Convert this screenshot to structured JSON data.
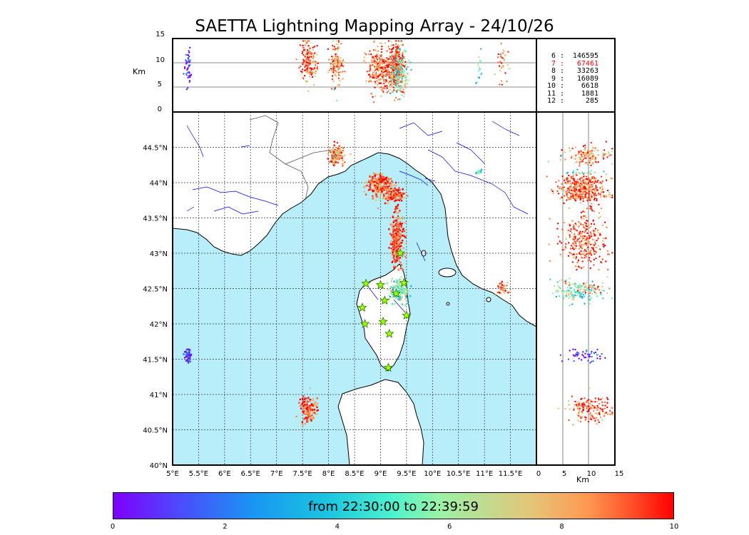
{
  "title": "SAETTA Lightning Mapping Array - 24/10/26",
  "altitude_panel": {
    "ylabel": "Km",
    "yticks": [
      "15",
      "10",
      "5",
      "0"
    ]
  },
  "side_panel": {
    "xlabel": "Km",
    "xticks": [
      "0",
      "5",
      "10",
      "15"
    ]
  },
  "map": {
    "lon_ticks": [
      "5°E",
      "5.5°E",
      "6°E",
      "6.5°E",
      "7°E",
      "7.5°E",
      "8°E",
      "8.5°E",
      "9°E",
      "9.5°E",
      "10°E",
      "10.5°E",
      "11°E",
      "11.5°E"
    ],
    "lat_ticks": [
      "44.5°N",
      "44°N",
      "43.5°N",
      "43°N",
      "42.5°N",
      "42°N",
      "41.5°N",
      "41°N",
      "40.5°N",
      "40°N"
    ],
    "lon_range": [
      5,
      12
    ],
    "lat_range": [
      40,
      45
    ],
    "sea_color": "#b8eefa",
    "land_color": "#ffffff",
    "river_color": "#0000ff",
    "station_icon": "star-icon",
    "station_color": "#9aff00"
  },
  "source_counts": [
    {
      "level": "6",
      "count": "146595",
      "active": false
    },
    {
      "level": "7",
      "count": "67461",
      "active": true
    },
    {
      "level": "8",
      "count": "33263",
      "active": false
    },
    {
      "level": "9",
      "count": "16089",
      "active": false
    },
    {
      "level": "10",
      "count": "6618",
      "active": false
    },
    {
      "level": "11",
      "count": "1881",
      "active": false
    },
    {
      "level": "12",
      "count": "285",
      "active": false
    }
  ],
  "colorbar": {
    "label": "from 22:30:00 to 22:39:59",
    "ticks": [
      "0",
      "2",
      "4",
      "6",
      "8",
      "10"
    ],
    "range": [
      0,
      10
    ]
  }
}
